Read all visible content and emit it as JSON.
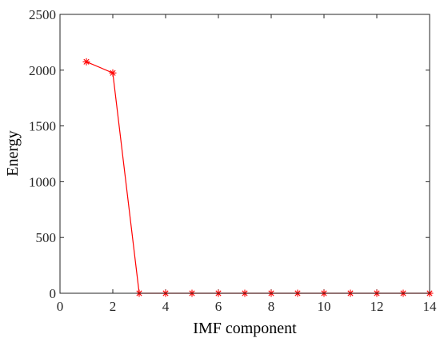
{
  "chart_data": {
    "type": "line",
    "title": "",
    "xlabel": "IMF component",
    "ylabel": "Energy",
    "xlim": [
      0,
      14
    ],
    "ylim": [
      0,
      2500
    ],
    "xticks": [
      0,
      2,
      4,
      6,
      8,
      10,
      12,
      14
    ],
    "yticks": [
      0,
      500,
      1000,
      1500,
      2000,
      2500
    ],
    "grid": false,
    "legend": "none",
    "marker": "asterisk",
    "series": [
      {
        "color": "#ff0000",
        "x": [
          1,
          2,
          3,
          4,
          5,
          6,
          7,
          8,
          9,
          10,
          11,
          12,
          13,
          14
        ],
        "y": [
          2075,
          1975,
          0,
          0,
          0,
          0,
          0,
          0,
          0,
          0,
          0,
          0,
          0,
          0
        ]
      }
    ]
  }
}
